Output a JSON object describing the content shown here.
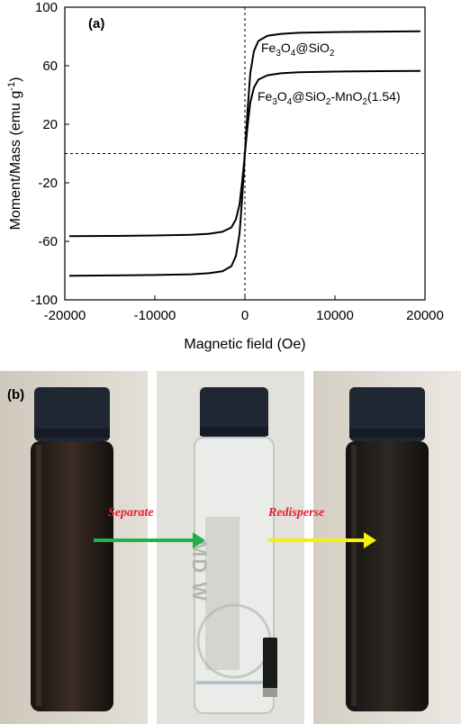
{
  "panel_a_label": "(a)",
  "panel_b_label": "(b)",
  "colors": {
    "curve": "#000000",
    "green_arrow": "#22b14c",
    "yellow_arrow": "#f7f00a",
    "arrow_text": "#e8202a",
    "vial_dark": "#2a1f1a",
    "cap": "#1c2430"
  },
  "chart_data": {
    "type": "line",
    "xlabel": "Magnetic field (Oe)",
    "ylabel": "Moment/Mass (emu g-1)",
    "xlim": [
      -20000,
      20000
    ],
    "ylim": [
      -100,
      100
    ],
    "x_ticks": [
      "-20000",
      "-10000",
      "0",
      "10000",
      "20000"
    ],
    "y_ticks": [
      "100",
      "60",
      "20",
      "-20",
      "-60",
      "-100"
    ],
    "grid": false,
    "reference_lines": {
      "x": 0,
      "y": 0,
      "style": "dashed"
    },
    "series": [
      {
        "name": "Fe3O4@SiO2",
        "label_main": "Fe",
        "label_sub1": "3",
        "label_mid": "O",
        "label_sub2": "4",
        "label_after": "@SiO",
        "label_sub3": "2",
        "label_tail": "",
        "x": [
          -19500,
          -15000,
          -10000,
          -6000,
          -4000,
          -2500,
          -1500,
          -1000,
          -600,
          -300,
          0,
          300,
          600,
          1000,
          1500,
          2500,
          4000,
          6000,
          10000,
          15000,
          19500
        ],
        "y": [
          -83.5,
          -83.3,
          -83.0,
          -82.5,
          -81.8,
          -80.5,
          -77.0,
          -70.0,
          -55.0,
          -30.0,
          0.0,
          30.0,
          55.0,
          70.0,
          77.0,
          80.5,
          81.8,
          82.5,
          83.0,
          83.3,
          83.5
        ]
      },
      {
        "name": "Fe3O4@SiO2-MnO2(1.54)",
        "label_main": "Fe",
        "label_sub1": "3",
        "label_mid": "O",
        "label_sub2": "4",
        "label_after": "@SiO",
        "label_sub3": "2",
        "label_tail": "-MnO",
        "label_sub4": "2",
        "label_end": "(1.54)",
        "x": [
          -19500,
          -15000,
          -10000,
          -6000,
          -4000,
          -2500,
          -1500,
          -1000,
          -600,
          -300,
          0,
          300,
          600,
          1000,
          1500,
          2500,
          4000,
          6000,
          10000,
          15000,
          19500
        ],
        "y": [
          -56.5,
          -56.3,
          -56.0,
          -55.5,
          -54.8,
          -53.5,
          -50.5,
          -45.0,
          -35.0,
          -19.0,
          0.0,
          19.0,
          35.0,
          45.0,
          50.5,
          53.5,
          54.8,
          55.5,
          56.0,
          56.3,
          56.5
        ]
      }
    ]
  },
  "photos": {
    "arrow1_label": "Separate",
    "arrow2_label": "Redisperse",
    "vial_print": "MD W"
  }
}
